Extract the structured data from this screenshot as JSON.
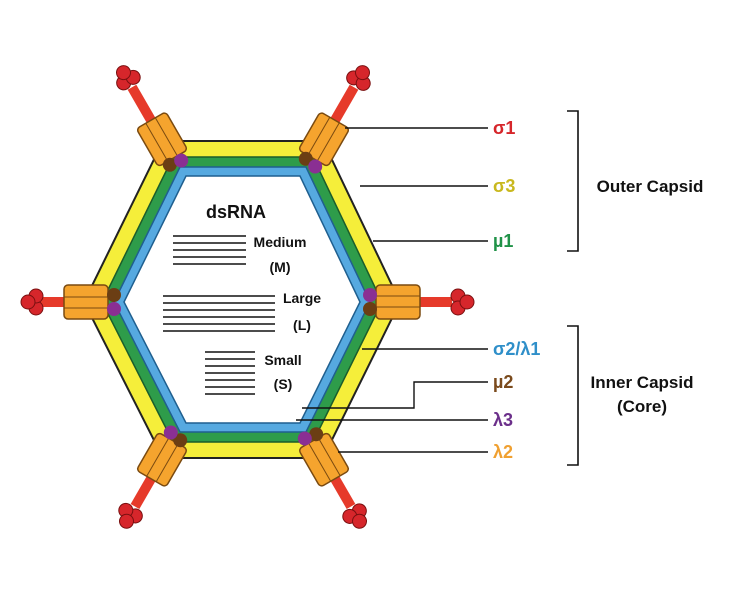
{
  "dsrna": {
    "title": "dsRNA",
    "segments": [
      {
        "name": "Medium",
        "code": "(M)"
      },
      {
        "name": "Large",
        "code": "(L)"
      },
      {
        "name": "Small",
        "code": "(S)"
      }
    ]
  },
  "proteins": [
    {
      "label": "σ1",
      "color": "#d6262b"
    },
    {
      "label": "σ3",
      "color": "#c9b81e"
    },
    {
      "label": "µ1",
      "color": "#1f9247"
    },
    {
      "label": "σ2/λ1",
      "color": "#2f8fc9"
    },
    {
      "label": "µ2",
      "color": "#7a4a1c"
    },
    {
      "label": "λ3",
      "color": "#6b2f8a"
    },
    {
      "label": "λ2",
      "color": "#f0a030"
    }
  ],
  "groups": {
    "outer": [
      "Outer Capsid"
    ],
    "inner": [
      "Inner Capsid",
      "(Core)"
    ]
  },
  "colors": {
    "outer_ring": "#f5ee3a",
    "green_ring": "#2e9c4a",
    "blue_ring": "#56a9e0",
    "spike": "#e63a2a",
    "turret": "#f5a42e",
    "core_dot": "#8a2f93",
    "brown_dot": "#6b3e14"
  }
}
